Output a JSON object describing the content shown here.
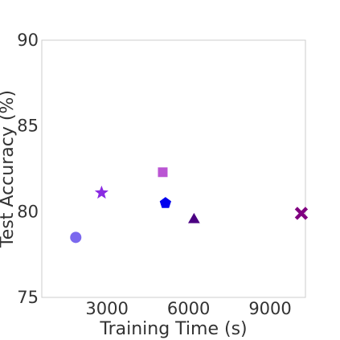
{
  "chart_data": {
    "type": "scatter",
    "title": "",
    "xlabel": "Training Time (s)",
    "ylabel": "Test Accuracy (%)",
    "xlim": [
      600,
      10300
    ],
    "ylim": [
      75,
      90
    ],
    "x_ticks": [
      {
        "value": 3000,
        "label": "3000"
      },
      {
        "value": 6000,
        "label": "6000"
      },
      {
        "value": 9000,
        "label": "9000"
      }
    ],
    "y_ticks": [
      {
        "value": 75,
        "label": "75"
      },
      {
        "value": 80,
        "label": "80"
      },
      {
        "value": 85,
        "label": "85"
      },
      {
        "value": 90,
        "label": "90"
      }
    ],
    "grid": false,
    "legend": "none",
    "points": [
      {
        "x": 1850,
        "y": 78.5,
        "marker": "circle",
        "color": "#7b68ee"
      },
      {
        "x": 2800,
        "y": 81.1,
        "marker": "star",
        "color": "#8a2be2"
      },
      {
        "x": 5050,
        "y": 82.3,
        "marker": "square",
        "color": "#ba55d3"
      },
      {
        "x": 5150,
        "y": 80.5,
        "marker": "pentagon",
        "color": "#0000ee"
      },
      {
        "x": 6200,
        "y": 79.6,
        "marker": "triangle",
        "color": "#4b0082"
      },
      {
        "x": 10150,
        "y": 79.9,
        "marker": "x",
        "color": "#800080"
      }
    ]
  }
}
